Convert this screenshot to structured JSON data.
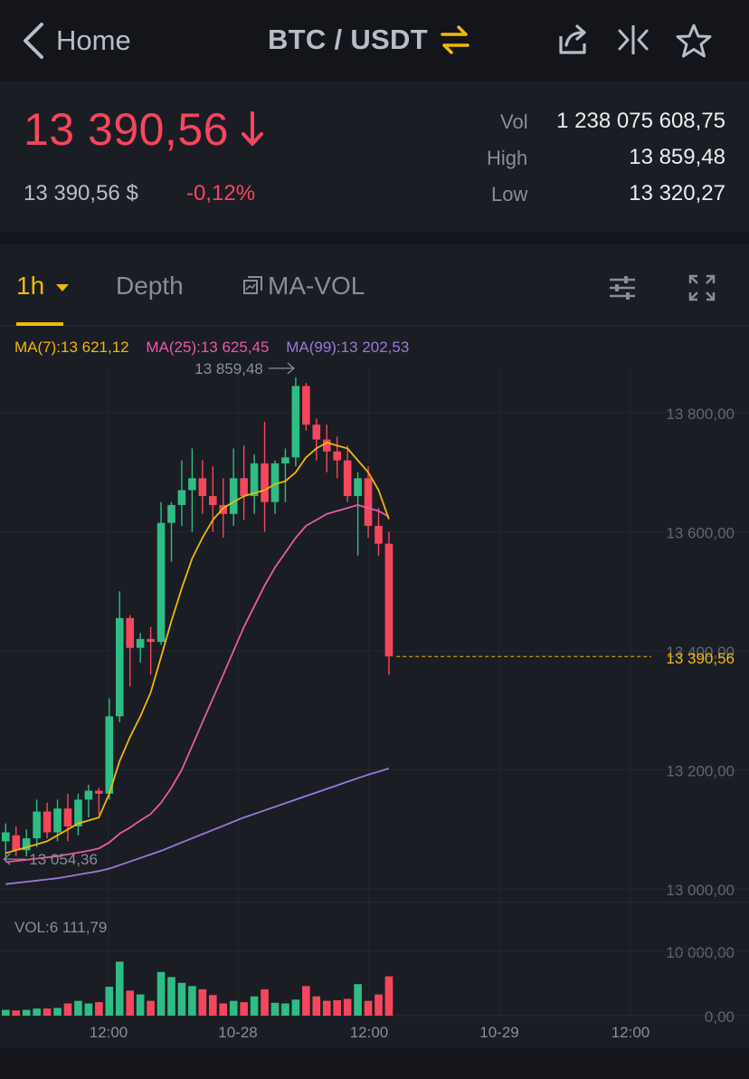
{
  "nav": {
    "back_label": "Home",
    "pair": "BTC / USDT",
    "icons": [
      "chevron-left-icon",
      "swap-arrows-icon",
      "share-icon",
      "compare-icon",
      "star-icon"
    ]
  },
  "ticker": {
    "price": "13 390,56",
    "fiat_price": "13 390,56 $",
    "change_pct": "-0,12%",
    "vol_label": "Vol",
    "vol_value": "1 238 075 608,75",
    "high_label": "High",
    "high_value": "13 859,48",
    "low_label": "Low",
    "low_value": "13 320,27"
  },
  "tabs": {
    "interval": "1h",
    "depth": "Depth",
    "indicator": "MA-VOL"
  },
  "ma": {
    "ma7": "MA(7):13 621,12",
    "ma25": "MA(25):13 625,45",
    "ma99": "MA(99):13 202,53"
  },
  "colors": {
    "up": "#2ebd85",
    "down": "#f6465d",
    "accent": "#f0b90b",
    "ma7": "#f0b90b",
    "ma25": "#e85aa6",
    "ma99": "#9b7ad6"
  },
  "chart_data": {
    "type": "candlestick",
    "price_axis_ticks": [
      "13 800,00",
      "13 600,00",
      "13 400,00",
      "13 200,00",
      "13 000,00"
    ],
    "price_axis_values": [
      13800,
      13600,
      13400,
      13200,
      13000
    ],
    "current_price_label": "13 390,56",
    "current_price": 13390.56,
    "max_annotation": "13 859,48",
    "min_annotation": "13 054,36",
    "time_ticks": [
      "12:00",
      "10-28",
      "12:00",
      "10-29",
      "12:00"
    ],
    "volume_label": "VOL:6 111,79",
    "volume_axis_ticks": [
      "10 000,00",
      "0,00"
    ],
    "volume_axis_values": [
      10000,
      0
    ],
    "ylim": [
      13000,
      13860
    ],
    "candles": [
      {
        "o": 13080,
        "h": 13110,
        "l": 13050,
        "c": 13095
      },
      {
        "o": 13090,
        "h": 13105,
        "l": 13055,
        "c": 13065
      },
      {
        "o": 13065,
        "h": 13100,
        "l": 13054.36,
        "c": 13085
      },
      {
        "o": 13085,
        "h": 13150,
        "l": 13070,
        "c": 13130
      },
      {
        "o": 13130,
        "h": 13145,
        "l": 13085,
        "c": 13095
      },
      {
        "o": 13095,
        "h": 13150,
        "l": 13080,
        "c": 13135
      },
      {
        "o": 13135,
        "h": 13160,
        "l": 13080,
        "c": 13105
      },
      {
        "o": 13105,
        "h": 13160,
        "l": 13090,
        "c": 13150
      },
      {
        "o": 13150,
        "h": 13175,
        "l": 13120,
        "c": 13165
      },
      {
        "o": 13165,
        "h": 13170,
        "l": 13125,
        "c": 13160
      },
      {
        "o": 13160,
        "h": 13320,
        "l": 13150,
        "c": 13290
      },
      {
        "o": 13290,
        "h": 13500,
        "l": 13280,
        "c": 13455
      },
      {
        "o": 13455,
        "h": 13460,
        "l": 13340,
        "c": 13405
      },
      {
        "o": 13405,
        "h": 13430,
        "l": 13380,
        "c": 13420
      },
      {
        "o": 13420,
        "h": 13440,
        "l": 13360,
        "c": 13415
      },
      {
        "o": 13415,
        "h": 13650,
        "l": 13410,
        "c": 13615
      },
      {
        "o": 13615,
        "h": 13650,
        "l": 13550,
        "c": 13645
      },
      {
        "o": 13645,
        "h": 13720,
        "l": 13610,
        "c": 13670
      },
      {
        "o": 13670,
        "h": 13740,
        "l": 13600,
        "c": 13690
      },
      {
        "o": 13690,
        "h": 13720,
        "l": 13630,
        "c": 13660
      },
      {
        "o": 13660,
        "h": 13710,
        "l": 13600,
        "c": 13645
      },
      {
        "o": 13645,
        "h": 13690,
        "l": 13590,
        "c": 13630
      },
      {
        "o": 13630,
        "h": 13740,
        "l": 13610,
        "c": 13690
      },
      {
        "o": 13690,
        "h": 13745,
        "l": 13620,
        "c": 13660
      },
      {
        "o": 13660,
        "h": 13730,
        "l": 13630,
        "c": 13715
      },
      {
        "o": 13715,
        "h": 13785,
        "l": 13600,
        "c": 13650
      },
      {
        "o": 13650,
        "h": 13720,
        "l": 13630,
        "c": 13715
      },
      {
        "o": 13715,
        "h": 13740,
        "l": 13650,
        "c": 13725
      },
      {
        "o": 13725,
        "h": 13859.48,
        "l": 13710,
        "c": 13845
      },
      {
        "o": 13845,
        "h": 13850,
        "l": 13770,
        "c": 13780
      },
      {
        "o": 13780,
        "h": 13790,
        "l": 13720,
        "c": 13755
      },
      {
        "o": 13755,
        "h": 13780,
        "l": 13700,
        "c": 13735
      },
      {
        "o": 13735,
        "h": 13760,
        "l": 13690,
        "c": 13720
      },
      {
        "o": 13720,
        "h": 13745,
        "l": 13650,
        "c": 13660
      },
      {
        "o": 13660,
        "h": 13700,
        "l": 13560,
        "c": 13690
      },
      {
        "o": 13690,
        "h": 13710,
        "l": 13590,
        "c": 13610
      },
      {
        "o": 13610,
        "h": 13640,
        "l": 13560,
        "c": 13580
      },
      {
        "o": 13580,
        "h": 13600,
        "l": 13360,
        "c": 13390.56
      }
    ],
    "volumes": [
      900,
      800,
      900,
      1100,
      1100,
      1200,
      1900,
      2300,
      1900,
      2100,
      4500,
      8400,
      3900,
      3300,
      2300,
      6800,
      6000,
      5100,
      4600,
      4100,
      3200,
      1900,
      2300,
      2100,
      3000,
      4100,
      2000,
      1900,
      2500,
      4600,
      3000,
      2300,
      2400,
      2600,
      4900,
      2300,
      3300,
      6111.79
    ],
    "ma7": [
      13060,
      13065,
      13070,
      13075,
      13080,
      13090,
      13100,
      13110,
      13115,
      13120,
      13160,
      13215,
      13255,
      13290,
      13330,
      13390,
      13450,
      13505,
      13555,
      13590,
      13620,
      13640,
      13650,
      13660,
      13665,
      13670,
      13680,
      13685,
      13700,
      13725,
      13740,
      13750,
      13745,
      13740,
      13720,
      13700,
      13670,
      13621.12
    ],
    "ma25": [
      13045,
      13047,
      13049,
      13051,
      13053,
      13055,
      13058,
      13061,
      13064,
      13068,
      13078,
      13093,
      13103,
      13115,
      13126,
      13145,
      13170,
      13200,
      13240,
      13280,
      13320,
      13360,
      13400,
      13440,
      13475,
      13510,
      13540,
      13565,
      13590,
      13610,
      13620,
      13630,
      13635,
      13640,
      13645,
      13640,
      13635,
      13625.45
    ],
    "ma99": [
      13008,
      13010,
      13012,
      13014,
      13016,
      13018,
      13021,
      13024,
      13027,
      13030,
      13034,
      13040,
      13046,
      13052,
      13058,
      13064,
      13071,
      13078,
      13085,
      13092,
      13099,
      13106,
      13113,
      13120,
      13126,
      13132,
      13138,
      13144,
      13150,
      13156,
      13162,
      13168,
      13174,
      13180,
      13186,
      13192,
      13197,
      13202.53
    ]
  }
}
